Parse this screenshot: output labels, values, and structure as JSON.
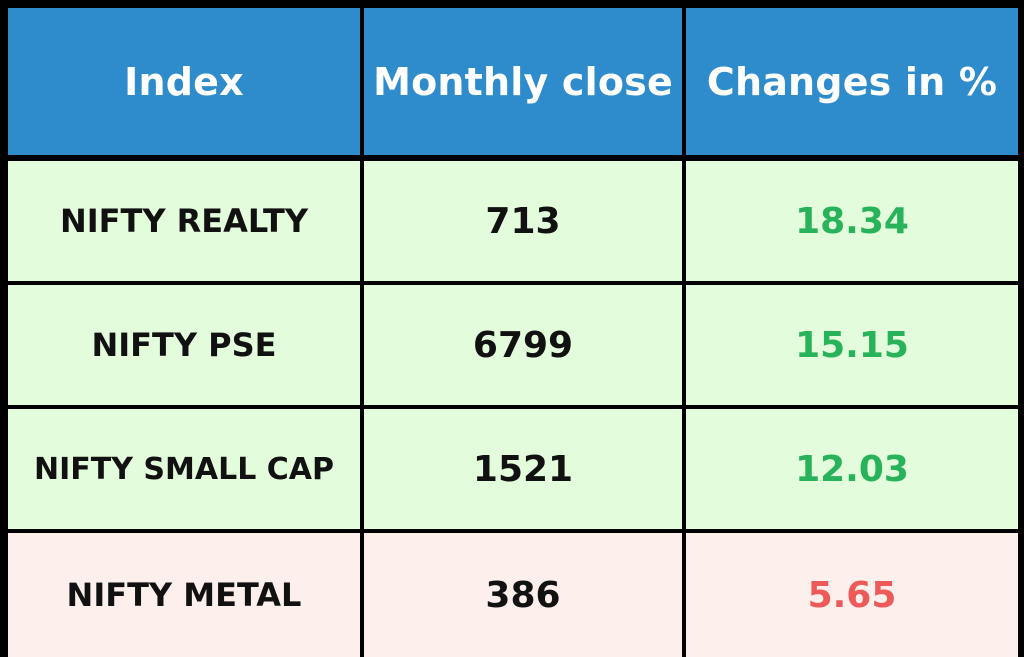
{
  "chart_data": {
    "type": "table",
    "columns": [
      "Index",
      "Monthly close",
      "Changes in %"
    ],
    "rows": [
      {
        "index": "NIFTY REALTY",
        "close": "713",
        "change": "18.34",
        "trend": "up"
      },
      {
        "index": "NIFTY PSE",
        "close": "6799",
        "change": "15.15",
        "trend": "up"
      },
      {
        "index": "NIFTY SMALL CAP",
        "close": "1521",
        "change": "12.03",
        "trend": "up"
      },
      {
        "index": "NIFTY METAL",
        "close": "386",
        "change": "5.65",
        "trend": "down"
      }
    ]
  },
  "colors": {
    "header_bg": "#2f8ccc",
    "header_text": "#ffffff",
    "up_row_bg": "#e3fcdc",
    "down_row_bg": "#fdefec",
    "up_text": "#28b25a",
    "down_text": "#ee5a5a",
    "border": "#000000"
  }
}
